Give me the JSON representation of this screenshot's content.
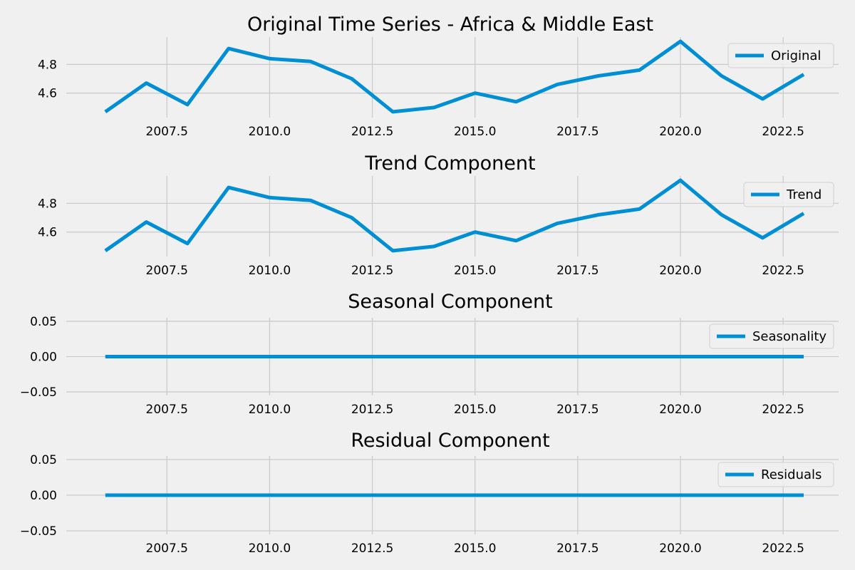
{
  "figure": {
    "background": "#f0f0f0",
    "grid_color": "#cbcbcb",
    "line_color": "#008fd5"
  },
  "chart_data": [
    {
      "type": "line",
      "title": "Original Time Series - Africa & Middle East",
      "legend": [
        "Original"
      ],
      "legend_position": "upper-right",
      "grid": true,
      "x": [
        2006,
        2007,
        2008,
        2009,
        2010,
        2011,
        2012,
        2013,
        2014,
        2015,
        2016,
        2017,
        2018,
        2019,
        2020,
        2021,
        2022,
        2023
      ],
      "xticks": [
        "2007.5",
        "2010.0",
        "2012.5",
        "2015.0",
        "2017.5",
        "2020.0",
        "2022.5"
      ],
      "xlim": [
        2005.05,
        2023.85
      ],
      "ylim": [
        4.43,
        4.99
      ],
      "yticks": [
        "4.6",
        "4.8"
      ],
      "series": [
        {
          "name": "Original",
          "values": [
            4.47,
            4.67,
            4.52,
            4.91,
            4.84,
            4.82,
            4.7,
            4.47,
            4.5,
            4.6,
            4.54,
            4.66,
            4.72,
            4.76,
            4.96,
            4.72,
            4.56,
            4.73
          ]
        }
      ]
    },
    {
      "type": "line",
      "title": "Trend Component",
      "legend": [
        "Trend"
      ],
      "legend_position": "upper-right",
      "grid": true,
      "x": [
        2006,
        2007,
        2008,
        2009,
        2010,
        2011,
        2012,
        2013,
        2014,
        2015,
        2016,
        2017,
        2018,
        2019,
        2020,
        2021,
        2022,
        2023
      ],
      "xticks": [
        "2007.5",
        "2010.0",
        "2012.5",
        "2015.0",
        "2017.5",
        "2020.0",
        "2022.5"
      ],
      "xlim": [
        2005.05,
        2023.85
      ],
      "ylim": [
        4.43,
        4.99
      ],
      "yticks": [
        "4.6",
        "4.8"
      ],
      "series": [
        {
          "name": "Trend",
          "values": [
            4.47,
            4.67,
            4.52,
            4.91,
            4.84,
            4.82,
            4.7,
            4.47,
            4.5,
            4.6,
            4.54,
            4.66,
            4.72,
            4.76,
            4.96,
            4.72,
            4.56,
            4.73
          ]
        }
      ]
    },
    {
      "type": "line",
      "title": "Seasonal Component",
      "legend": [
        "Seasonality"
      ],
      "legend_position": "upper-right",
      "grid": true,
      "x": [
        2006,
        2007,
        2008,
        2009,
        2010,
        2011,
        2012,
        2013,
        2014,
        2015,
        2016,
        2017,
        2018,
        2019,
        2020,
        2021,
        2022,
        2023
      ],
      "xticks": [
        "2007.5",
        "2010.0",
        "2012.5",
        "2015.0",
        "2017.5",
        "2020.0",
        "2022.5"
      ],
      "xlim": [
        2005.05,
        2023.85
      ],
      "ylim": [
        -0.055,
        0.055
      ],
      "yticks": [
        "0.05",
        "0.00",
        "−0.05"
      ],
      "series": [
        {
          "name": "Seasonality",
          "values": [
            0,
            0,
            0,
            0,
            0,
            0,
            0,
            0,
            0,
            0,
            0,
            0,
            0,
            0,
            0,
            0,
            0,
            0
          ]
        }
      ]
    },
    {
      "type": "line",
      "title": "Residual Component",
      "legend": [
        "Residuals"
      ],
      "legend_position": "upper-right",
      "grid": true,
      "x": [
        2006,
        2007,
        2008,
        2009,
        2010,
        2011,
        2012,
        2013,
        2014,
        2015,
        2016,
        2017,
        2018,
        2019,
        2020,
        2021,
        2022,
        2023
      ],
      "xticks": [
        "2007.5",
        "2010.0",
        "2012.5",
        "2015.0",
        "2017.5",
        "2020.0",
        "2022.5"
      ],
      "xlim": [
        2005.05,
        2023.85
      ],
      "ylim": [
        -0.055,
        0.055
      ],
      "yticks": [
        "0.05",
        "0.00",
        "−0.05"
      ],
      "series": [
        {
          "name": "Residuals",
          "values": [
            0,
            0,
            0,
            0,
            0,
            0,
            0,
            0,
            0,
            0,
            0,
            0,
            0,
            0,
            0,
            0,
            0,
            0
          ]
        }
      ]
    }
  ]
}
